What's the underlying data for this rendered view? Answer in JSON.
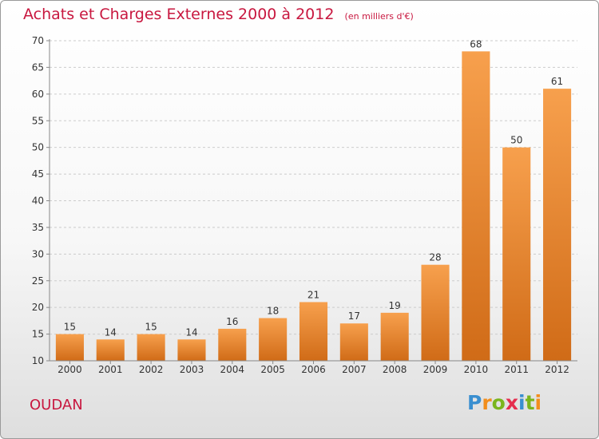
{
  "header": {
    "title": "Achats et Charges Externes 2000 à 2012",
    "unit": "(en milliers d'€)"
  },
  "footer": {
    "commune": "OUDAN",
    "brand": [
      "P",
      "r",
      "o",
      "x",
      "i",
      "t",
      "i"
    ],
    "brand_colors": [
      "#3a8fd0",
      "#f28e1c",
      "#7ab51d",
      "#e52d4e",
      "#3a8fd0",
      "#7ab51d",
      "#f28e1c"
    ]
  },
  "colors": {
    "bar_top": "#f7a04d",
    "bar_bottom": "#d06b17",
    "axis": "#888888",
    "grid": "#cccccc",
    "label": "#333333"
  },
  "chart_data": {
    "type": "bar",
    "title": "Achats et Charges Externes 2000 à 2012",
    "subtitle": "(en milliers d'€)",
    "categories": [
      "2000",
      "2001",
      "2002",
      "2003",
      "2004",
      "2005",
      "2006",
      "2007",
      "2008",
      "2009",
      "2010",
      "2011",
      "2012"
    ],
    "values": [
      15,
      14,
      15,
      14,
      16,
      18,
      21,
      17,
      19,
      28,
      68,
      50,
      61
    ],
    "ylim": [
      10,
      70
    ],
    "yticks": [
      10,
      15,
      20,
      25,
      30,
      35,
      40,
      45,
      50,
      55,
      60,
      65,
      70
    ],
    "grid": "horizontal dashed",
    "xlabel": "",
    "ylabel": ""
  }
}
